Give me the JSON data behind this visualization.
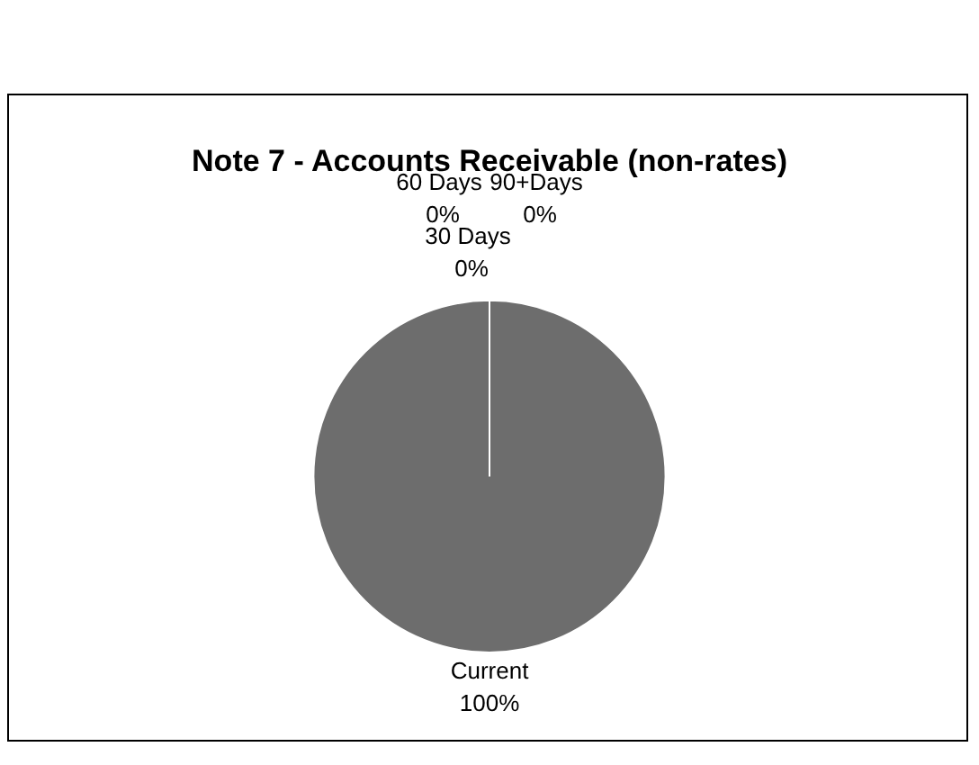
{
  "chart_data": {
    "type": "pie",
    "title": "Note 7 - Accounts Receivable (non-rates)",
    "categories": [
      "Current",
      "30 Days",
      "60 Days",
      "90+Days"
    ],
    "values": [
      100,
      0,
      0,
      0
    ],
    "value_labels": [
      "100%",
      "0%",
      "0%",
      "0%"
    ],
    "colors": [
      "#6d6d6d",
      "#6d6d6d",
      "#6d6d6d",
      "#6d6d6d"
    ],
    "legend": false
  }
}
